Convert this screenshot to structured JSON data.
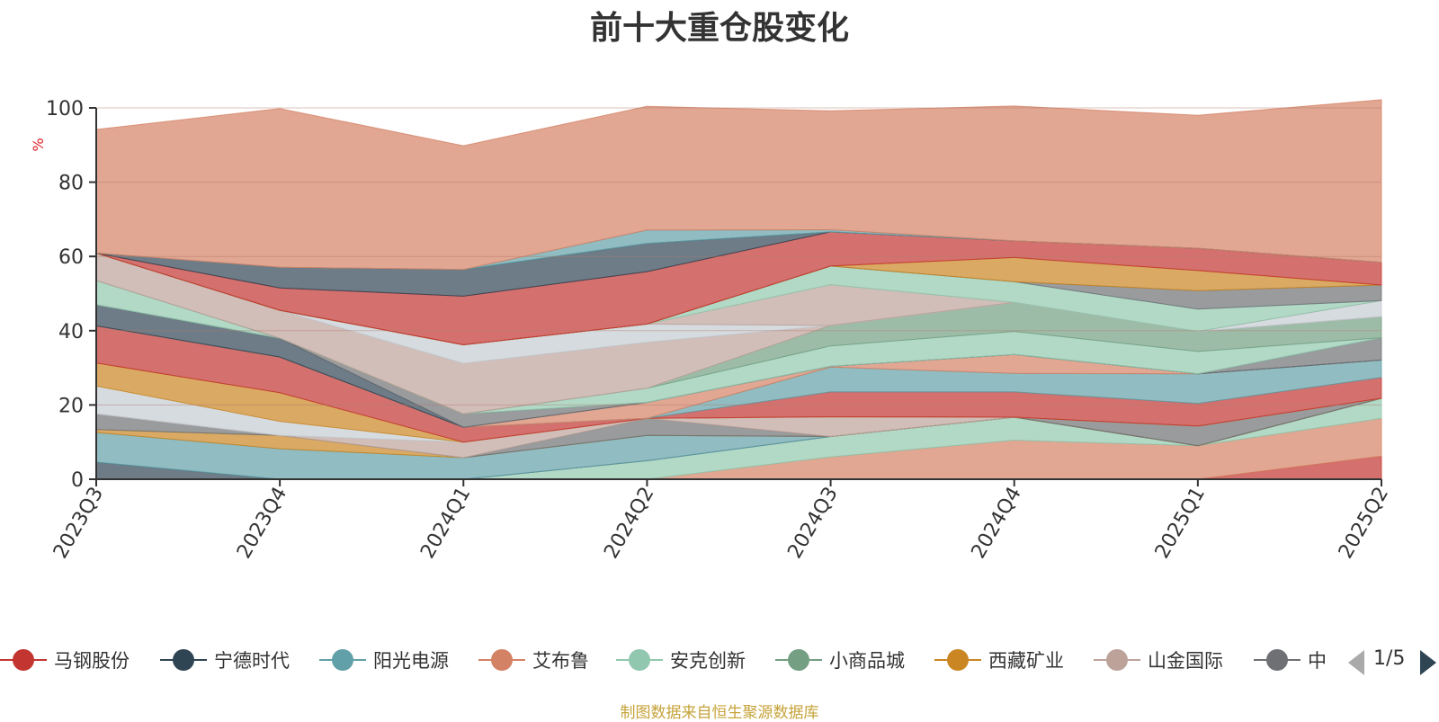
{
  "chart_data": {
    "type": "area",
    "stacked": true,
    "title": "前十大重仓股变化",
    "ylabel": "%",
    "ylim": [
      0,
      100
    ],
    "yticks": [
      0,
      20,
      40,
      60,
      80,
      100
    ],
    "grid": true,
    "legend_position": "bottom",
    "categories": [
      "2023Q3",
      "2023Q4",
      "2024Q1",
      "2024Q2",
      "2024Q3",
      "2024Q4",
      "2025Q1",
      "2025Q2"
    ],
    "series": [
      {
        "name": "马钢股份",
        "color": "#c23531",
        "values": [
          0,
          0,
          0,
          0,
          0,
          0,
          0,
          6.2
        ]
      },
      {
        "name": "艾布鲁",
        "color": "#d48265",
        "values": [
          0,
          0,
          0,
          0,
          6.0,
          10.5,
          9.0,
          10.2
        ]
      },
      {
        "name": "安克创新",
        "color": "#91c7ae",
        "values": [
          0,
          0,
          0,
          5.0,
          5.5,
          6.2,
          0,
          5.4
        ]
      },
      {
        "name": "宁德时代",
        "color": "#2f4554",
        "values": [
          4.6,
          0,
          0,
          0,
          0,
          0,
          0,
          0
        ]
      },
      {
        "name": "阳光电源",
        "color": "#61a0a8",
        "values": [
          8.0,
          8.2,
          5.8,
          6.8,
          0,
          0,
          0,
          0
        ]
      },
      {
        "name": "西藏矿业",
        "color": "#ca8622",
        "values": [
          0.8,
          3.6,
          0,
          0,
          0,
          0,
          0,
          0
        ]
      },
      {
        "name": "中",
        "color": "#6e7074",
        "values": [
          4.2,
          0,
          0,
          4.6,
          0,
          0,
          5.3,
          0
        ]
      },
      {
        "name": "山金国际",
        "color": "#bda29a",
        "values": [
          0,
          0,
          4.2,
          0,
          5.3,
          0,
          0,
          0
        ]
      },
      {
        "name": "",
        "color": "#c4ccd3",
        "values": [
          7.5,
          3.8,
          0,
          0,
          0,
          0,
          0,
          0
        ]
      },
      {
        "name": "",
        "color": "#ca8622",
        "values": [
          6.2,
          7.7,
          0,
          0,
          0,
          0,
          0,
          0
        ]
      },
      {
        "name": "",
        "color": "#c23531",
        "values": [
          10.0,
          9.6,
          4.0,
          0,
          6.7,
          6.8,
          6.1,
          5.6
        ]
      },
      {
        "name": "",
        "color": "#61a0a8",
        "values": [
          0,
          0,
          0,
          0,
          6.7,
          5.0,
          8.0,
          4.7
        ]
      },
      {
        "name": "",
        "color": "#d48265",
        "values": [
          0,
          0,
          0,
          4.3,
          0.2,
          5.1,
          0,
          0
        ]
      },
      {
        "name": "",
        "color": "#2f4554",
        "values": [
          5.7,
          5.1,
          0,
          0,
          0,
          0,
          0,
          0
        ]
      },
      {
        "name": "",
        "color": "#6e7074",
        "values": [
          0,
          0,
          3.6,
          0,
          0,
          0,
          0,
          6.0
        ]
      },
      {
        "name": "",
        "color": "#91c7ae",
        "values": [
          6.5,
          0,
          0,
          3.8,
          5.5,
          6.2,
          6.0,
          0
        ]
      },
      {
        "name": "",
        "color": "#749f83",
        "values": [
          0,
          0,
          0,
          0,
          5.5,
          7.8,
          5.4,
          5.7
        ]
      },
      {
        "name": "",
        "color": "#bda29a",
        "values": [
          7.4,
          7.5,
          13.6,
          12.4,
          0,
          0,
          0,
          0
        ]
      },
      {
        "name": "",
        "color": "#c4ccd3",
        "values": [
          0,
          0,
          5.0,
          4.9,
          0,
          0,
          0,
          4.3
        ]
      },
      {
        "name": "",
        "color": "#bda29a",
        "values": [
          0,
          0,
          0,
          0,
          11.0,
          0,
          0,
          0
        ]
      },
      {
        "name": "",
        "color": "#91c7ae",
        "values": [
          0,
          0,
          0,
          0,
          5.0,
          5.6,
          6.0,
          0
        ]
      },
      {
        "name": "",
        "color": "#6e7074",
        "values": [
          0,
          0,
          0,
          0,
          0,
          0,
          5.0,
          4.2
        ]
      },
      {
        "name": "",
        "color": "#ca8622",
        "values": [
          0,
          0,
          0,
          0,
          0,
          6.5,
          5.4,
          0
        ]
      },
      {
        "name": "",
        "color": "#c23531",
        "values": [
          0,
          6.0,
          13.1,
          14.1,
          9.2,
          4.5,
          6.0,
          6.1
        ]
      },
      {
        "name": "",
        "color": "#2f4554",
        "values": [
          0,
          5.6,
          7.2,
          7.6,
          0,
          0,
          0,
          0
        ]
      },
      {
        "name": "",
        "color": "#61a0a8",
        "values": [
          0,
          0,
          0,
          3.6,
          0.6,
          0,
          0,
          0
        ]
      },
      {
        "name": "",
        "color": "#d48265",
        "values": [
          33.3,
          42.7,
          33.3,
          33.3,
          32.0,
          36.3,
          35.8,
          43.8
        ]
      }
    ]
  },
  "legend": {
    "items": [
      {
        "label": "马钢股份",
        "color": "#c23531"
      },
      {
        "label": "宁德时代",
        "color": "#2f4554"
      },
      {
        "label": "阳光电源",
        "color": "#61a0a8"
      },
      {
        "label": "艾布鲁",
        "color": "#d48265"
      },
      {
        "label": "安克创新",
        "color": "#91c7ae"
      },
      {
        "label": "小商品城",
        "color": "#749f83"
      },
      {
        "label": "西藏矿业",
        "color": "#ca8622"
      },
      {
        "label": "山金国际",
        "color": "#bda29a"
      },
      {
        "label": "中",
        "color": "#6e7074"
      }
    ],
    "pager_text": "1/5",
    "pager_prev_icon": "triangle-left-icon",
    "pager_next_icon": "triangle-right-icon"
  },
  "footer": {
    "source_note": "制图数据来自恒生聚源数据库"
  }
}
